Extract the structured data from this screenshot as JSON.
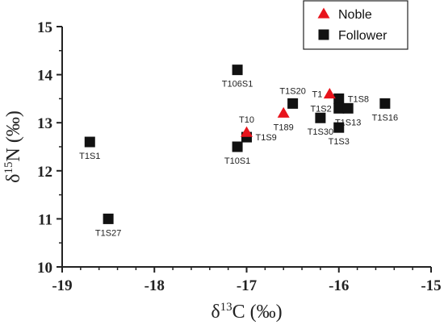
{
  "chart_data": {
    "type": "scatter",
    "xlabel": {
      "prefix": "δ",
      "sup": "13",
      "suffix": "C (‰)"
    },
    "ylabel": {
      "prefix": "δ",
      "sup": "15",
      "suffix": "N (‰)"
    },
    "xlim": [
      -19,
      -15
    ],
    "ylim": [
      10,
      15
    ],
    "x_ticks": [
      -19,
      -18,
      -17,
      -16,
      -15
    ],
    "y_ticks": [
      10,
      11,
      12,
      13,
      14,
      15
    ],
    "x_tick_labels": [
      "-19",
      "-18",
      "-17",
      "-16",
      "-15"
    ],
    "y_tick_labels": [
      "10",
      "11",
      "12",
      "13",
      "14",
      "15"
    ],
    "grid": false,
    "legend_position": "top-right",
    "series": [
      {
        "name": "Noble",
        "marker": "triangle",
        "color": "#e8141c",
        "points": [
          {
            "label": "T1",
            "x": -16.1,
            "y": 13.6,
            "label_pos": "left"
          },
          {
            "label": "T10",
            "x": -17.0,
            "y": 12.8,
            "label_pos": "above"
          },
          {
            "label": "T189",
            "x": -16.6,
            "y": 13.2,
            "label_pos": "below"
          }
        ]
      },
      {
        "name": "Follower",
        "marker": "square",
        "color": "#111111",
        "points": [
          {
            "label": "T1S1",
            "x": -18.7,
            "y": 12.6,
            "label_pos": "below"
          },
          {
            "label": "T1S27",
            "x": -18.5,
            "y": 11.0,
            "label_pos": "below"
          },
          {
            "label": "T106S1",
            "x": -17.1,
            "y": 14.1,
            "label_pos": "below"
          },
          {
            "label": "T10S1",
            "x": -17.1,
            "y": 12.5,
            "label_pos": "below"
          },
          {
            "label": "T1S9",
            "x": -17.0,
            "y": 12.7,
            "label_pos": "right"
          },
          {
            "label": "T1S20",
            "x": -16.5,
            "y": 13.4,
            "label_pos": "above"
          },
          {
            "label": "T1S30",
            "x": -16.2,
            "y": 13.1,
            "label_pos": "below"
          },
          {
            "label": "T1S8",
            "x": -16.0,
            "y": 13.5,
            "label_pos": "right"
          },
          {
            "label": "T1S2",
            "x": -16.0,
            "y": 13.3,
            "label_pos": "left"
          },
          {
            "label": "T1S13",
            "x": -15.9,
            "y": 13.3,
            "label_pos": "below"
          },
          {
            "label": "T1S3",
            "x": -16.0,
            "y": 12.9,
            "label_pos": "below"
          },
          {
            "label": "T1S16",
            "x": -15.5,
            "y": 13.4,
            "label_pos": "below"
          }
        ]
      }
    ]
  }
}
